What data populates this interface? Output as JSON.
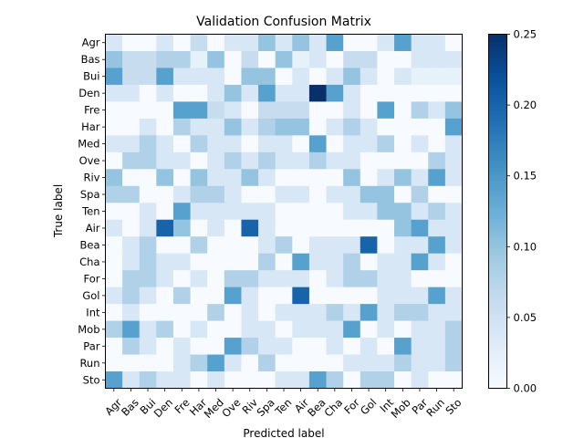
{
  "chart_data": {
    "type": "heatmap",
    "title": "Validation Confusion Matrix",
    "xlabel": "Predicted label",
    "ylabel": "True label",
    "labels": [
      "Agr",
      "Bas",
      "Bui",
      "Den",
      "Fre",
      "Har",
      "Med",
      "Ove",
      "Riv",
      "Spa",
      "Ten",
      "Air",
      "Bea",
      "Cha",
      "For",
      "Gol",
      "Int",
      "Mob",
      "Par",
      "Run",
      "Sto"
    ],
    "colorbar": {
      "min": 0.0,
      "max": 0.25,
      "ticks": [
        "0.00",
        "0.05",
        "0.10",
        "0.15",
        "0.20",
        "0.25"
      ],
      "colormap": "Blues"
    },
    "matrix": [
      [
        0.04,
        0.0,
        0.0,
        0.04,
        0.0,
        0.06,
        0.0,
        0.04,
        0.04,
        0.1,
        0.04,
        0.1,
        0.04,
        0.14,
        0.0,
        0.0,
        0.04,
        0.14,
        0.04,
        0.04,
        0.0
      ],
      [
        0.1,
        0.06,
        0.06,
        0.08,
        0.08,
        0.02,
        0.1,
        0.0,
        0.06,
        0.0,
        0.1,
        0.02,
        0.04,
        0.0,
        0.06,
        0.06,
        0.0,
        0.0,
        0.04,
        0.04,
        0.04
      ],
      [
        0.14,
        0.06,
        0.06,
        0.14,
        0.04,
        0.04,
        0.04,
        0.0,
        0.1,
        0.1,
        0.0,
        0.04,
        0.0,
        0.04,
        0.1,
        0.04,
        0.0,
        0.04,
        0.02,
        0.02,
        0.02
      ],
      [
        0.04,
        0.04,
        0.0,
        0.04,
        0.0,
        0.0,
        0.04,
        0.1,
        0.04,
        0.14,
        0.04,
        0.04,
        0.25,
        0.14,
        0.04,
        0.0,
        0.0,
        0.0,
        0.0,
        0.0,
        0.0
      ],
      [
        0.0,
        0.0,
        0.0,
        0.0,
        0.14,
        0.14,
        0.06,
        0.04,
        0.0,
        0.06,
        0.06,
        0.06,
        0.0,
        0.0,
        0.04,
        0.0,
        0.14,
        0.0,
        0.08,
        0.04,
        0.1
      ],
      [
        0.0,
        0.0,
        0.04,
        0.0,
        0.08,
        0.04,
        0.04,
        0.1,
        0.04,
        0.08,
        0.1,
        0.1,
        0.0,
        0.04,
        0.08,
        0.04,
        0.0,
        0.0,
        0.0,
        0.0,
        0.14
      ],
      [
        0.04,
        0.04,
        0.08,
        0.04,
        0.0,
        0.08,
        0.04,
        0.04,
        0.0,
        0.04,
        0.04,
        0.0,
        0.14,
        0.0,
        0.04,
        0.04,
        0.08,
        0.0,
        0.04,
        0.0,
        0.04
      ],
      [
        0.0,
        0.08,
        0.08,
        0.04,
        0.04,
        0.0,
        0.04,
        0.08,
        0.04,
        0.08,
        0.04,
        0.04,
        0.08,
        0.04,
        0.04,
        0.0,
        0.0,
        0.0,
        0.0,
        0.08,
        0.04
      ],
      [
        0.1,
        0.0,
        0.0,
        0.1,
        0.0,
        0.1,
        0.04,
        0.04,
        0.1,
        0.04,
        0.0,
        0.0,
        0.0,
        0.0,
        0.1,
        0.0,
        0.04,
        0.1,
        0.04,
        0.14,
        0.04
      ],
      [
        0.08,
        0.08,
        0.0,
        0.0,
        0.04,
        0.08,
        0.08,
        0.04,
        0.0,
        0.0,
        0.04,
        0.04,
        0.0,
        0.04,
        0.04,
        0.1,
        0.1,
        0.0,
        0.08,
        0.0,
        0.0
      ],
      [
        0.0,
        0.0,
        0.04,
        0.0,
        0.14,
        0.04,
        0.04,
        0.04,
        0.04,
        0.04,
        0.0,
        0.0,
        0.0,
        0.0,
        0.04,
        0.04,
        0.1,
        0.1,
        0.04,
        0.08,
        0.04
      ],
      [
        0.04,
        0.0,
        0.04,
        0.2,
        0.1,
        0.0,
        0.04,
        0.0,
        0.2,
        0.04,
        0.0,
        0.0,
        0.0,
        0.0,
        0.0,
        0.0,
        0.0,
        0.1,
        0.14,
        0.04,
        0.04
      ],
      [
        0.0,
        0.04,
        0.08,
        0.0,
        0.0,
        0.08,
        0.0,
        0.0,
        0.0,
        0.04,
        0.08,
        0.0,
        0.04,
        0.04,
        0.04,
        0.2,
        0.0,
        0.04,
        0.04,
        0.14,
        0.04
      ],
      [
        0.0,
        0.04,
        0.08,
        0.04,
        0.04,
        0.0,
        0.0,
        0.0,
        0.0,
        0.08,
        0.0,
        0.14,
        0.04,
        0.04,
        0.08,
        0.0,
        0.04,
        0.04,
        0.14,
        0.04,
        0.0
      ],
      [
        0.0,
        0.08,
        0.08,
        0.04,
        0.0,
        0.04,
        0.0,
        0.08,
        0.08,
        0.04,
        0.04,
        0.04,
        0.0,
        0.04,
        0.08,
        0.08,
        0.04,
        0.04,
        0.0,
        0.0,
        0.0
      ],
      [
        0.04,
        0.08,
        0.04,
        0.0,
        0.08,
        0.0,
        0.0,
        0.14,
        0.04,
        0.0,
        0.0,
        0.2,
        0.0,
        0.0,
        0.0,
        0.0,
        0.04,
        0.04,
        0.04,
        0.14,
        0.04
      ],
      [
        0.0,
        0.04,
        0.0,
        0.0,
        0.0,
        0.0,
        0.08,
        0.0,
        0.04,
        0.0,
        0.04,
        0.04,
        0.04,
        0.08,
        0.04,
        0.14,
        0.04,
        0.08,
        0.08,
        0.04,
        0.04
      ],
      [
        0.08,
        0.14,
        0.04,
        0.08,
        0.0,
        0.04,
        0.0,
        0.0,
        0.04,
        0.04,
        0.0,
        0.04,
        0.04,
        0.04,
        0.14,
        0.0,
        0.04,
        0.0,
        0.04,
        0.04,
        0.08
      ],
      [
        0.0,
        0.08,
        0.04,
        0.0,
        0.04,
        0.0,
        0.0,
        0.14,
        0.08,
        0.04,
        0.04,
        0.0,
        0.0,
        0.04,
        0.0,
        0.04,
        0.0,
        0.14,
        0.04,
        0.04,
        0.08
      ],
      [
        0.0,
        0.0,
        0.0,
        0.0,
        0.04,
        0.08,
        0.14,
        0.04,
        0.0,
        0.08,
        0.0,
        0.0,
        0.0,
        0.0,
        0.04,
        0.04,
        0.04,
        0.08,
        0.04,
        0.04,
        0.08
      ],
      [
        0.14,
        0.04,
        0.08,
        0.04,
        0.04,
        0.0,
        0.04,
        0.0,
        0.0,
        0.0,
        0.04,
        0.04,
        0.14,
        0.08,
        0.0,
        0.08,
        0.08,
        0.0,
        0.04,
        0.0,
        0.0
      ]
    ]
  }
}
